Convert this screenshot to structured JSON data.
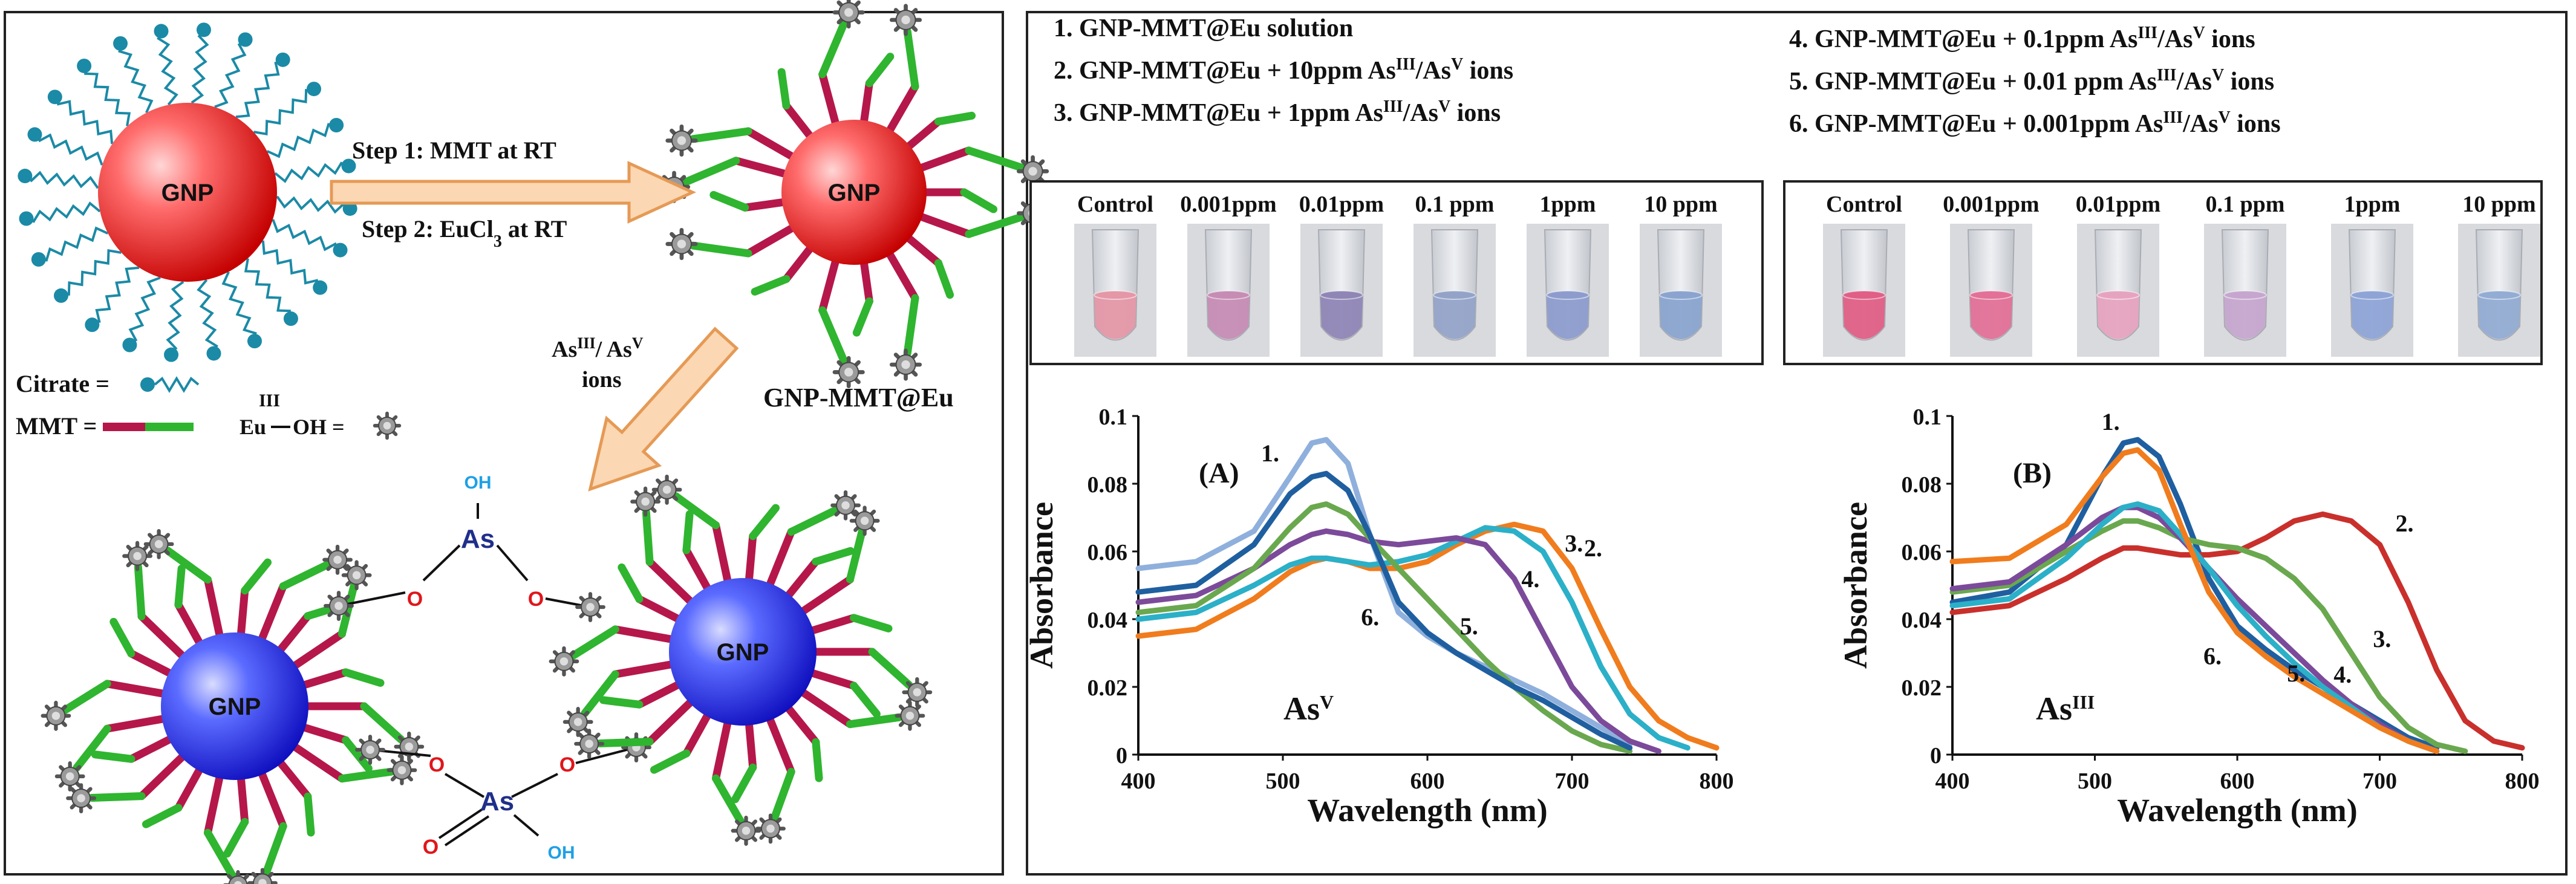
{
  "colors": {
    "gnp_red_light": "#ff9a9a",
    "gnp_red_dark": "#d40000",
    "gnp_blue_light": "#9aa8ff",
    "gnp_blue_dark": "#1a1ad8",
    "cyan": "#1b8aa6",
    "mmt_red": "#b5174b",
    "mmt_green": "#2fb52f",
    "arrow_fill": "#fbd7b3",
    "arrow_stroke": "#e59a55",
    "as_label": "#1f2f8a",
    "oxygen": "#e0161b",
    "oh_blue": "#1ea0e6"
  },
  "scheme": {
    "gnp_label": "GNP",
    "step1": "Step 1: MMT at RT",
    "step2_prefix": "Step 2: EuCl",
    "step2_sub": "3",
    "step2_suffix": " at RT",
    "product_label": "GNP-MMT@Eu",
    "ions_line1_as": "As",
    "ions_line1_sup1": "III",
    "ions_line1_mid": "/ As",
    "ions_line1_sup2": "V",
    "ions_line2": "ions",
    "legend_citrate": "Citrate =",
    "legend_mmt": "MMT =",
    "legend_eu": "Eu",
    "legend_eu_sup": "III",
    "legend_oh": "OH =",
    "complex_as": "As",
    "complex_oh": "OH",
    "complex_o": "O"
  },
  "legend_list": {
    "left": [
      {
        "num": "1.",
        "text": "GNP-MMT@Eu  solution",
        "tail": false
      },
      {
        "num": "2.",
        "text": "GNP-MMT@Eu + 10ppm As",
        "tail": true
      },
      {
        "num": "3.",
        "text": "GNP-MMT@Eu + 1ppm As",
        "tail": true
      }
    ],
    "right": [
      {
        "num": "4.",
        "text": "GNP-MMT@Eu  + 0.1ppm As",
        "tail": true
      },
      {
        "num": "5.",
        "text": "GNP-MMT@Eu + 0.01 ppm As",
        "tail": true
      },
      {
        "num": "6.",
        "text": "GNP-MMT@Eu + 0.001ppm As",
        "tail": true
      }
    ],
    "sup_iii": "III",
    "slash_as": "/As",
    "sup_v": "V",
    "ions": " ions"
  },
  "vials": {
    "labels": [
      "Control",
      "0.001ppm",
      "0.01ppm",
      "0.1 ppm",
      "1ppm",
      "10 ppm"
    ],
    "left_colors": [
      "#e497a6",
      "#c68cb4",
      "#8f86b6",
      "#93a3c8",
      "#8d9ccd",
      "#8aa4cf"
    ],
    "right_colors": [
      "#e05f86",
      "#e27097",
      "#e6a3c0",
      "#c6a6cf",
      "#8ea4d6",
      "#93acd3"
    ]
  },
  "chart_data": [
    {
      "type": "line",
      "panel": "(A)",
      "species": "As",
      "species_sup": "V",
      "xlabel": "Wavelength (nm)",
      "ylabel": "Absorbance",
      "xlim": [
        400,
        800
      ],
      "ylim": [
        0,
        0.1
      ],
      "xticks": [
        "400",
        "500",
        "600",
        "700",
        "800"
      ],
      "yticks": [
        "0",
        "0.02",
        "0.04",
        "0.06",
        "0.08",
        "0.1"
      ],
      "series": [
        {
          "name": "1.",
          "color": "#8fb0dc",
          "x": [
            400,
            440,
            480,
            505,
            520,
            530,
            545,
            560,
            580,
            600,
            620,
            640,
            660,
            680,
            700,
            720,
            740
          ],
          "y": [
            0.055,
            0.057,
            0.066,
            0.082,
            0.092,
            0.093,
            0.086,
            0.065,
            0.042,
            0.035,
            0.03,
            0.026,
            0.022,
            0.018,
            0.013,
            0.008,
            0.003
          ]
        },
        {
          "name": "2.",
          "color": "#f07c1d",
          "x": [
            400,
            440,
            480,
            505,
            520,
            530,
            545,
            560,
            580,
            600,
            620,
            640,
            660,
            680,
            700,
            720,
            740,
            760,
            780,
            800
          ],
          "y": [
            0.035,
            0.037,
            0.046,
            0.054,
            0.057,
            0.058,
            0.057,
            0.055,
            0.055,
            0.057,
            0.062,
            0.066,
            0.068,
            0.066,
            0.055,
            0.037,
            0.02,
            0.01,
            0.005,
            0.002
          ]
        },
        {
          "name": "3.",
          "color": "#2bb0c8",
          "x": [
            400,
            440,
            480,
            505,
            520,
            530,
            545,
            560,
            580,
            600,
            620,
            640,
            660,
            680,
            700,
            720,
            740,
            760,
            780
          ],
          "y": [
            0.04,
            0.042,
            0.05,
            0.056,
            0.058,
            0.058,
            0.057,
            0.056,
            0.057,
            0.059,
            0.063,
            0.067,
            0.066,
            0.06,
            0.045,
            0.026,
            0.012,
            0.005,
            0.002
          ]
        },
        {
          "name": "4.",
          "color": "#7c4a9a",
          "x": [
            400,
            440,
            480,
            505,
            520,
            530,
            545,
            560,
            580,
            600,
            620,
            640,
            660,
            680,
            700,
            720,
            740,
            760
          ],
          "y": [
            0.045,
            0.047,
            0.055,
            0.062,
            0.065,
            0.066,
            0.065,
            0.063,
            0.062,
            0.063,
            0.064,
            0.062,
            0.052,
            0.036,
            0.02,
            0.01,
            0.004,
            0.001
          ]
        },
        {
          "name": "5.",
          "color": "#6aa84f",
          "x": [
            400,
            440,
            480,
            505,
            520,
            530,
            545,
            560,
            580,
            600,
            620,
            640,
            660,
            680,
            700,
            720,
            740
          ],
          "y": [
            0.042,
            0.044,
            0.055,
            0.067,
            0.073,
            0.074,
            0.071,
            0.064,
            0.055,
            0.046,
            0.037,
            0.028,
            0.02,
            0.013,
            0.007,
            0.003,
            0.001
          ]
        },
        {
          "name": "6.",
          "color": "#1f5fa0",
          "x": [
            400,
            440,
            480,
            505,
            520,
            530,
            545,
            560,
            580,
            600,
            620,
            640,
            660,
            680,
            700,
            720,
            740
          ],
          "y": [
            0.048,
            0.05,
            0.062,
            0.077,
            0.082,
            0.083,
            0.078,
            0.065,
            0.045,
            0.036,
            0.03,
            0.025,
            0.02,
            0.016,
            0.011,
            0.006,
            0.002
          ]
        }
      ]
    },
    {
      "type": "line",
      "panel": "(B)",
      "species": "As",
      "species_sup": "III",
      "xlabel": "Wavelength (nm)",
      "ylabel": "Absorbance",
      "xlim": [
        400,
        800
      ],
      "ylim": [
        0,
        0.1
      ],
      "xticks": [
        "400",
        "500",
        "600",
        "700",
        "800"
      ],
      "yticks": [
        "0",
        "0.02",
        "0.04",
        "0.06",
        "0.08",
        "0.1"
      ],
      "series": [
        {
          "name": "1.",
          "color": "#1f5fa0",
          "x": [
            400,
            440,
            480,
            505,
            520,
            530,
            545,
            560,
            580,
            600,
            620,
            640,
            660,
            680,
            700,
            720,
            740
          ],
          "y": [
            0.045,
            0.048,
            0.062,
            0.082,
            0.092,
            0.093,
            0.088,
            0.074,
            0.052,
            0.038,
            0.031,
            0.025,
            0.02,
            0.015,
            0.01,
            0.005,
            0.002
          ]
        },
        {
          "name": "2.",
          "color": "#c9302c",
          "x": [
            400,
            440,
            480,
            505,
            520,
            530,
            545,
            560,
            580,
            600,
            620,
            640,
            660,
            680,
            700,
            720,
            740,
            760,
            780,
            800
          ],
          "y": [
            0.042,
            0.044,
            0.052,
            0.058,
            0.061,
            0.061,
            0.06,
            0.059,
            0.059,
            0.06,
            0.064,
            0.069,
            0.071,
            0.069,
            0.062,
            0.045,
            0.025,
            0.01,
            0.004,
            0.002
          ]
        },
        {
          "name": "3.",
          "color": "#6aa84f",
          "x": [
            400,
            440,
            480,
            505,
            520,
            530,
            545,
            560,
            580,
            600,
            620,
            640,
            660,
            680,
            700,
            720,
            740,
            760
          ],
          "y": [
            0.048,
            0.05,
            0.06,
            0.066,
            0.069,
            0.069,
            0.067,
            0.064,
            0.062,
            0.061,
            0.058,
            0.052,
            0.043,
            0.03,
            0.017,
            0.008,
            0.003,
            0.001
          ]
        },
        {
          "name": "4.",
          "color": "#7c4a9a",
          "x": [
            400,
            440,
            480,
            505,
            520,
            530,
            545,
            560,
            580,
            600,
            620,
            640,
            660,
            680,
            700,
            720,
            740
          ],
          "y": [
            0.049,
            0.051,
            0.062,
            0.07,
            0.073,
            0.073,
            0.07,
            0.064,
            0.055,
            0.046,
            0.038,
            0.03,
            0.022,
            0.015,
            0.009,
            0.004,
            0.001
          ]
        },
        {
          "name": "5.",
          "color": "#2bb0c8",
          "x": [
            400,
            440,
            480,
            505,
            520,
            530,
            545,
            560,
            580,
            600,
            620,
            640,
            660,
            680,
            700,
            720,
            740
          ],
          "y": [
            0.044,
            0.046,
            0.058,
            0.068,
            0.073,
            0.074,
            0.072,
            0.065,
            0.055,
            0.044,
            0.035,
            0.027,
            0.02,
            0.014,
            0.008,
            0.004,
            0.001
          ]
        },
        {
          "name": "6.",
          "color": "#f07c1d",
          "x": [
            400,
            440,
            480,
            505,
            520,
            530,
            545,
            560,
            580,
            600,
            620,
            640,
            660,
            680,
            700,
            720,
            740
          ],
          "y": [
            0.057,
            0.058,
            0.068,
            0.082,
            0.089,
            0.09,
            0.084,
            0.068,
            0.048,
            0.036,
            0.029,
            0.023,
            0.018,
            0.013,
            0.008,
            0.004,
            0.001
          ]
        }
      ]
    }
  ]
}
